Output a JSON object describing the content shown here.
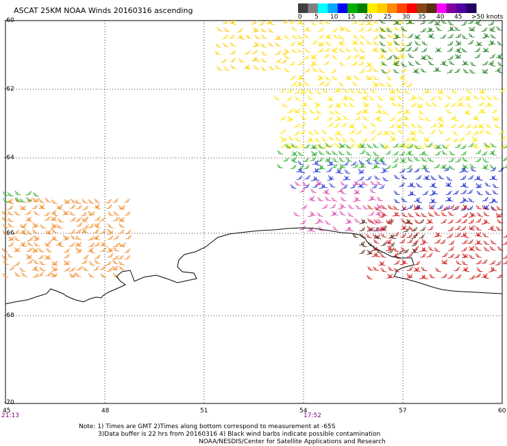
{
  "title": "ASCAT 25KM NOAA Winds 20160316 ascending",
  "colorscale": {
    "colors": [
      "#404040",
      "#808080",
      "#00ffff",
      "#00aaff",
      "#0000ff",
      "#00b000",
      "#008000",
      "#ffee00",
      "#ffcc00",
      "#ff8800",
      "#ff4400",
      "#ff0000",
      "#8b4513",
      "#5a2d0c",
      "#ff00ff",
      "#8000a0",
      "#5000a0",
      "#200060"
    ],
    "labels": [
      "0",
      "5",
      "10",
      "15",
      "20",
      "25",
      "30",
      "35",
      "40",
      "45",
      ">50 knots"
    ]
  },
  "latitudes": [
    "-60",
    "-62",
    "-64",
    "-66",
    "-68",
    "-70"
  ],
  "longitudes": [
    "45",
    "48",
    "51",
    "54",
    "57",
    "60"
  ],
  "times": [
    "21:13",
    "17:52"
  ],
  "notes": [
    "Note: 1) Times are GMT 2)Times along bottom correspond to measurement at -65S",
    "3)Data buffer is 22 hrs from 20160316 4) Black wind barbs indicate possible contamination",
    "NOAA/NESDIS/Center for Satellite Applications and Research"
  ]
}
